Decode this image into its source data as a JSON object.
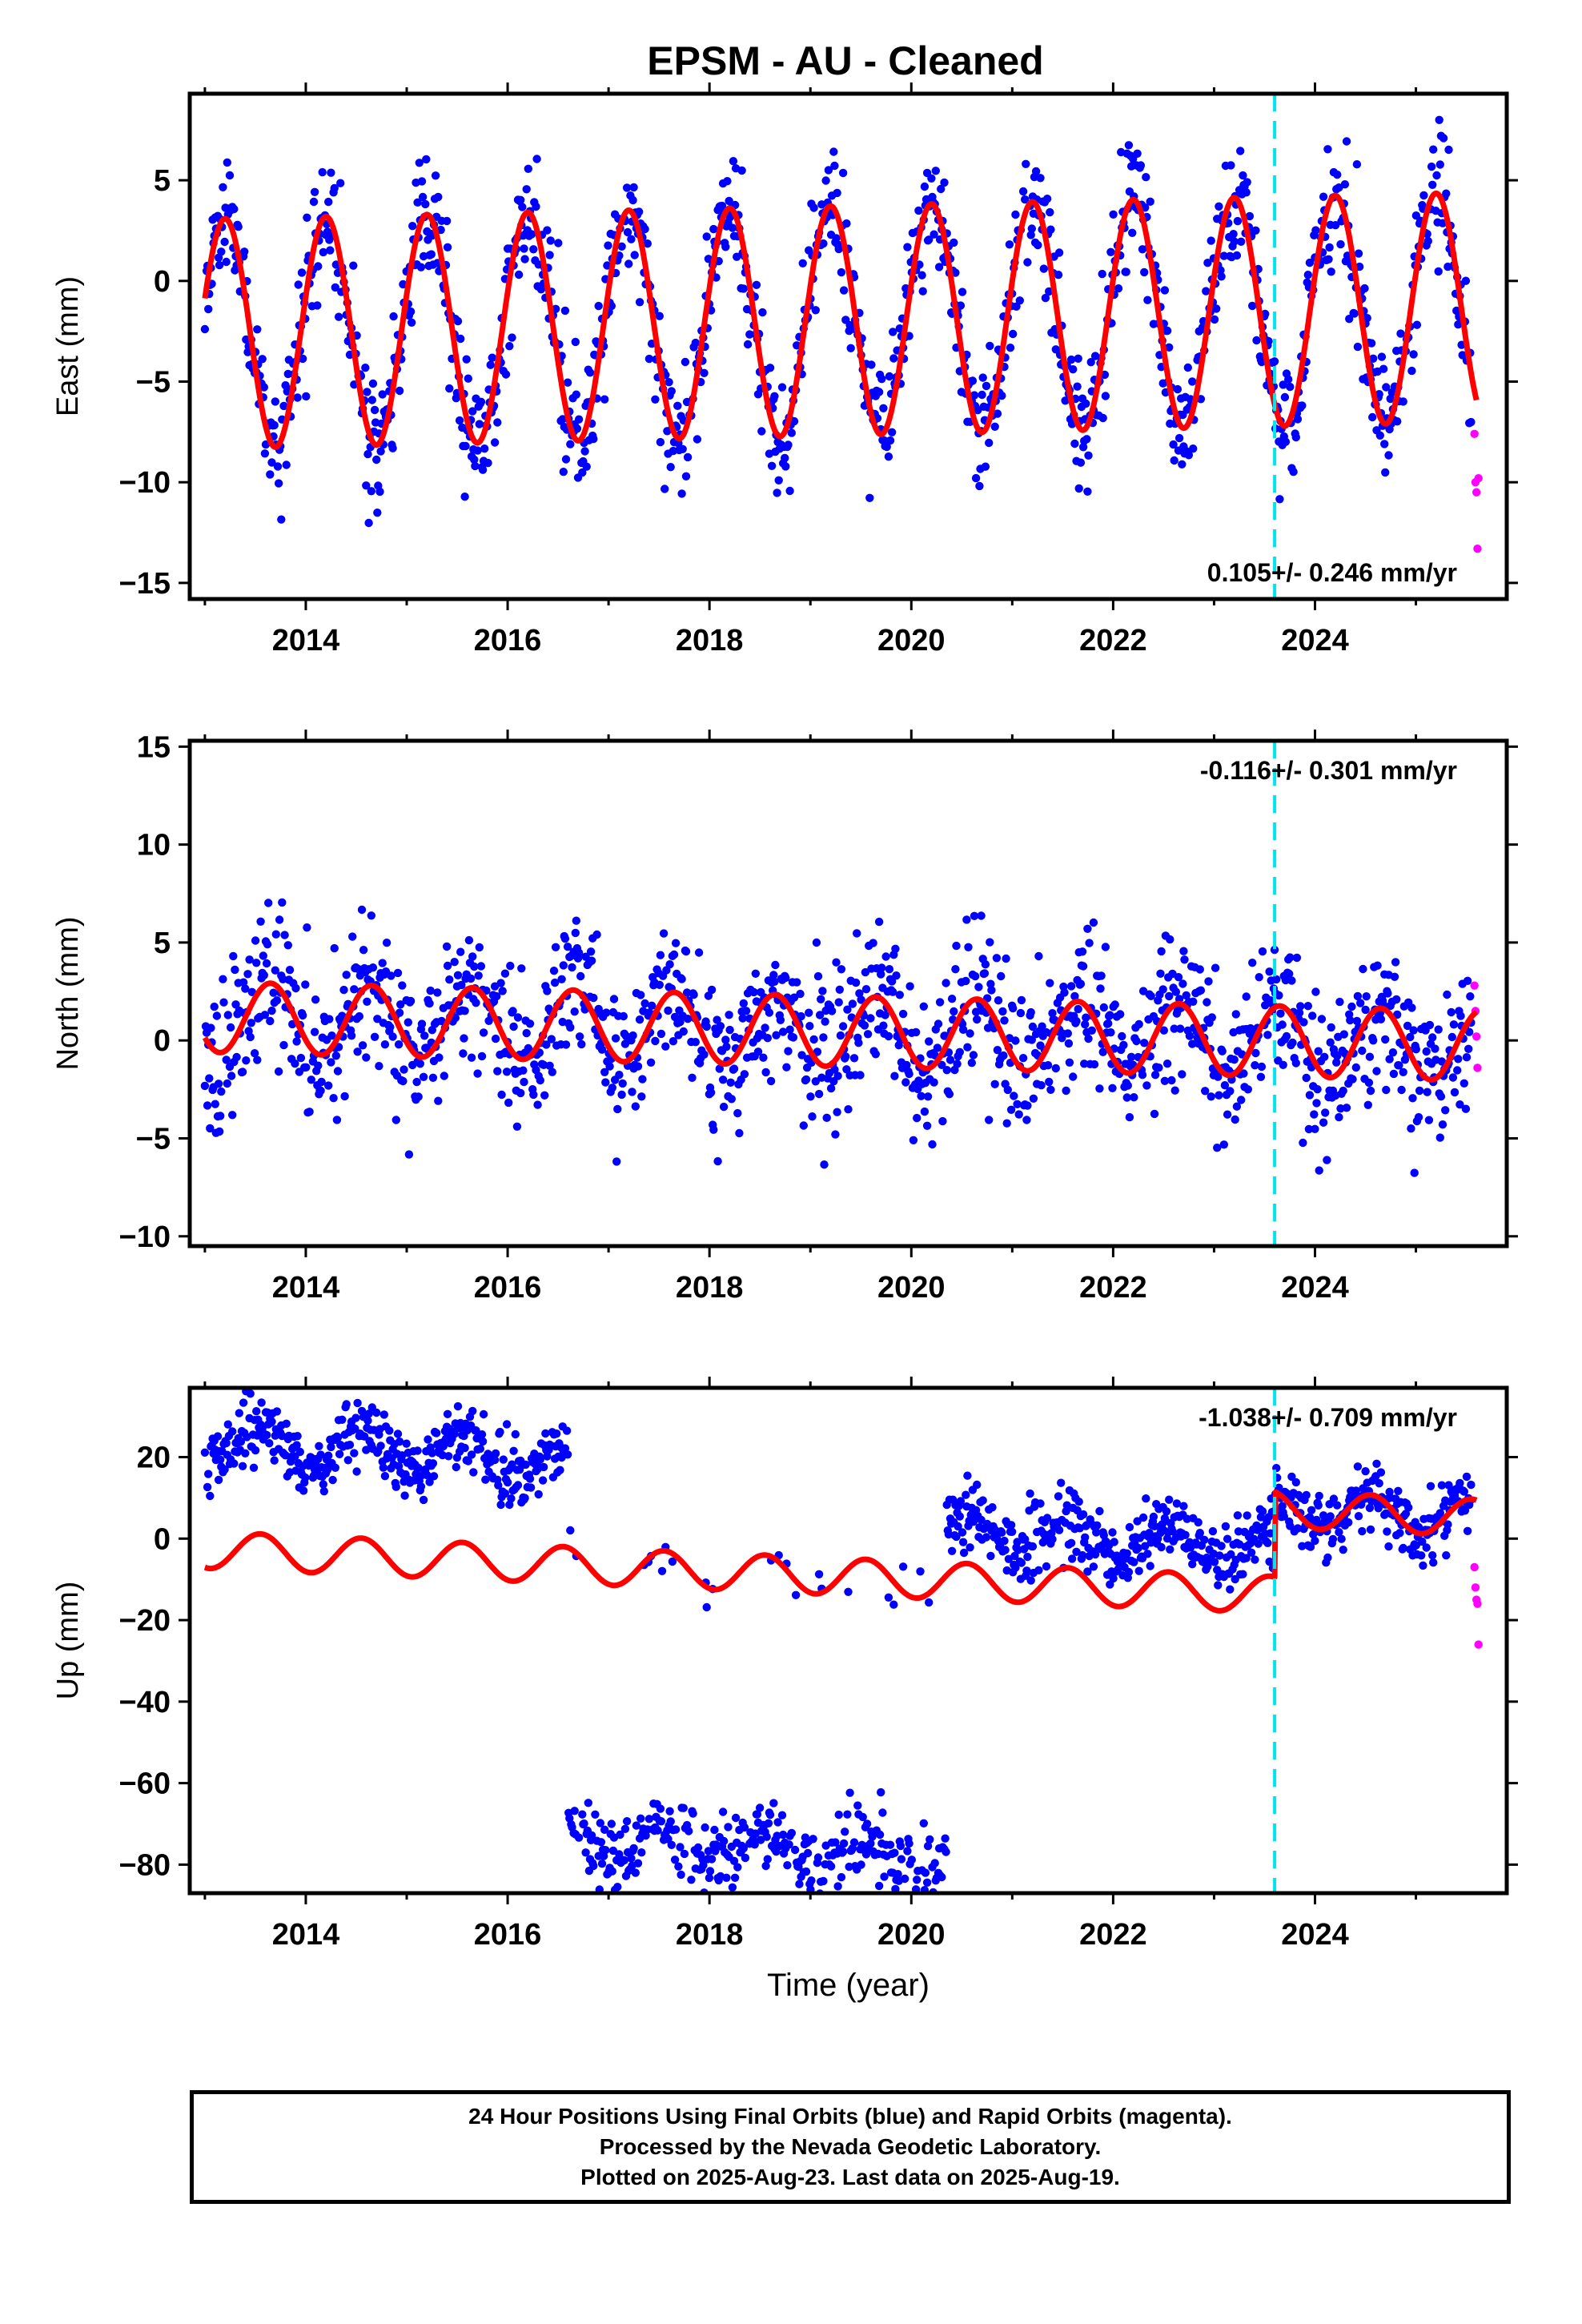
{
  "title": "EPSM  - AU - Cleaned",
  "colors": {
    "final_orbits": "#0000ff",
    "rapid_orbits": "#ff00ff",
    "model": "#ff0000",
    "event_line": "#00e5ee",
    "frame": "#000000"
  },
  "chart_data": [
    {
      "type": "scatter",
      "panel": "east",
      "ylabel": "East (mm)",
      "xlabel": "",
      "xlim": [
        2012.85,
        2025.9
      ],
      "ylim": [
        -15.8,
        9.3
      ],
      "x_ticks": [
        2014,
        2016,
        2018,
        2020,
        2022,
        2024
      ],
      "y_ticks": [
        5,
        0,
        -5,
        -10,
        -15
      ],
      "rate_text": "0.105+/- 0.246 mm/yr",
      "rate_position": "bottom-right",
      "event_line_x": 2023.6,
      "model": {
        "offset": -2.0,
        "amplitude": 5.7,
        "phase": 0.95,
        "trend": 0.105,
        "pre_event": [
          2013.0,
          2.5
        ]
      },
      "scatter_model": {
        "seed": 11,
        "noise": 1.6,
        "years_start": 2013.0,
        "years_end": 2025.55,
        "step": 0.0085
      },
      "rapid": {
        "x": [
          2025.58,
          2025.59,
          2025.6,
          2025.61,
          2025.62
        ],
        "y": [
          -7.6,
          -10.0,
          -10.5,
          -13.3,
          -9.8
        ]
      }
    },
    {
      "type": "scatter",
      "panel": "north",
      "ylabel": "North (mm)",
      "xlabel": "",
      "xlim": [
        2012.85,
        2025.9
      ],
      "ylim": [
        -10.5,
        15.3
      ],
      "x_ticks": [
        2014,
        2016,
        2018,
        2020,
        2022,
        2024
      ],
      "y_ticks": [
        15,
        10,
        5,
        0,
        -5,
        -10
      ],
      "rate_text": "-0.116+/- 0.301 mm/yr",
      "rate_position": "top-right",
      "event_line_x": 2023.6,
      "model": {
        "offset": 0.5,
        "amplitude": 1.8,
        "phase": 0.4,
        "trend": -0.116
      },
      "scatter_model": {
        "seed": 23,
        "noise": 1.9,
        "years_start": 2013.0,
        "years_end": 2025.55,
        "step": 0.0085
      },
      "rapid": {
        "x": [
          2025.58,
          2025.59,
          2025.6,
          2025.61
        ],
        "y": [
          2.8,
          1.5,
          0.2,
          -1.4
        ]
      }
    },
    {
      "type": "scatter",
      "panel": "up",
      "ylabel": "Up (mm)",
      "xlabel": "Time (year)",
      "xlim": [
        2012.85,
        2025.9
      ],
      "ylim": [
        -87,
        37
      ],
      "x_ticks": [
        2014,
        2016,
        2018,
        2020,
        2022,
        2024
      ],
      "y_ticks": [
        20,
        0,
        -20,
        -40,
        -60,
        -80
      ],
      "rate_text": "-1.038+/- 0.709 mm/yr",
      "rate_position": "top-right",
      "event_line_x": 2023.6,
      "model": {
        "offset": -9.0,
        "amplitude": 4.5,
        "phase": 0.3,
        "trend": -1.038,
        "post_event_offset": 21.0
      },
      "scatter_model": {
        "seed": 37,
        "noise": 4.0,
        "years_start": 2013.0,
        "years_end": 2025.55,
        "step": 0.0085
      },
      "rapid": {
        "x": [
          2025.58,
          2025.59,
          2025.6,
          2025.61,
          2025.62
        ],
        "y": [
          -7.0,
          -12.0,
          -15.0,
          -16.0,
          -26.0
        ]
      }
    }
  ],
  "footer": {
    "line1": "24 Hour Positions Using Final Orbits (blue) and Rapid Orbits (magenta).",
    "line2": "Processed by the Nevada Geodetic Laboratory.",
    "line3": "Plotted on 2025-Aug-23. Last data on 2025-Aug-19."
  }
}
